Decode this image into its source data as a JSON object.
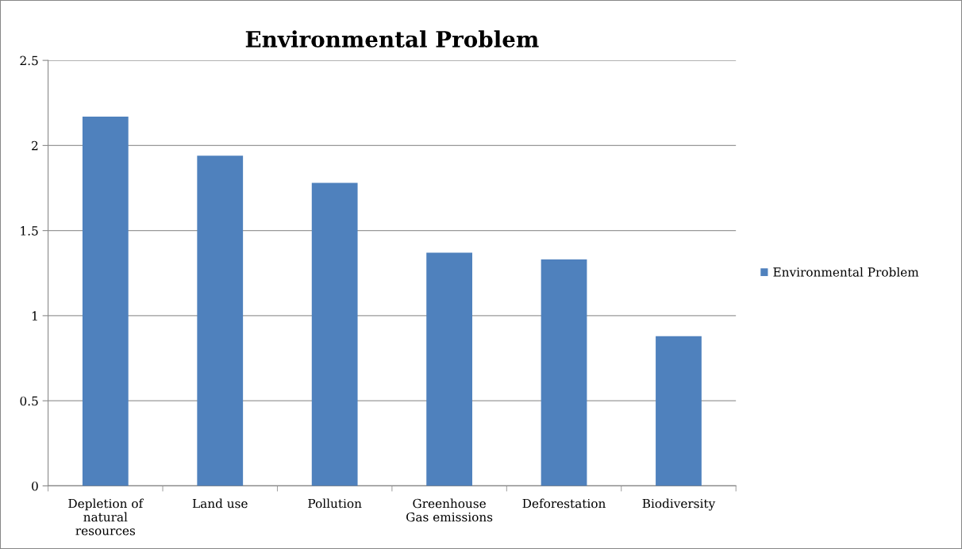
{
  "chart_data": {
    "type": "bar",
    "title": "Environmental Problem",
    "categories": [
      "Depletion of natural resources",
      "Land use",
      "Pollution",
      "Greenhouse Gas emissions",
      "Deforestation",
      "Biodiversity"
    ],
    "series": [
      {
        "name": "Environmental Problem",
        "color": "#4f81bd",
        "values": [
          2.17,
          1.94,
          1.78,
          1.37,
          1.33,
          0.88
        ]
      }
    ],
    "ylim": [
      0,
      2.5
    ],
    "yticks": [
      {
        "value": 0,
        "label": "0"
      },
      0.5,
      {
        "value": 1,
        "label": "1"
      },
      1.5,
      {
        "value": 2,
        "label": "2"
      },
      2.5
    ],
    "grid": "y",
    "legend": "right"
  }
}
